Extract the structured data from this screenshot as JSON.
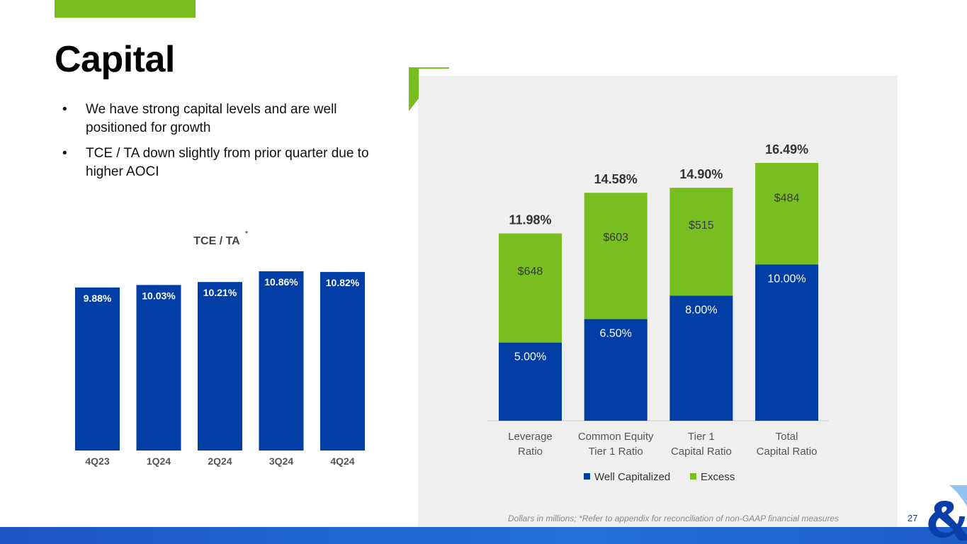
{
  "title": "Capital",
  "bullets": [
    "We have strong capital levels and are well positioned for growth",
    "TCE / TA down slightly from prior quarter due to higher AOCI"
  ],
  "footnote": "Dollars in millions; *Refer to appendix for reconciliation of non-GAAP financial measures",
  "page_number": "27",
  "colors": {
    "blue": "#003da5",
    "green": "#78be20",
    "panel": "#efefef"
  },
  "chart_data": [
    {
      "type": "bar",
      "title": "TCE / TA",
      "title_marker": "*",
      "categories": [
        "4Q23",
        "1Q24",
        "2Q24",
        "3Q24",
        "4Q24"
      ],
      "values": [
        9.88,
        10.03,
        10.21,
        10.86,
        10.82
      ],
      "value_labels": [
        "9.88%",
        "10.03%",
        "10.21%",
        "10.86%",
        "10.82%"
      ],
      "ylim": [
        0,
        11
      ],
      "color": "#003da5"
    },
    {
      "type": "bar",
      "stacked": true,
      "categories": [
        "Leverage Ratio",
        "Common Equity Tier 1 Ratio",
        "Tier 1 Capital Ratio",
        "Total Capital Ratio"
      ],
      "category_lines": [
        [
          "Leverage",
          "Ratio"
        ],
        [
          "Common Equity",
          "Tier 1 Ratio"
        ],
        [
          "Tier 1",
          "Capital Ratio"
        ],
        [
          "Total",
          "Capital Ratio"
        ]
      ],
      "series": [
        {
          "name": "Well Capitalized",
          "values": [
            5.0,
            6.5,
            8.0,
            10.0
          ],
          "labels": [
            "5.00%",
            "6.50%",
            "8.00%",
            "10.00%"
          ],
          "color": "#003da5"
        },
        {
          "name": "Excess",
          "values": [
            6.98,
            8.08,
            6.9,
            6.49
          ],
          "labels": [
            "$648",
            "$603",
            "$515",
            "$484"
          ],
          "color": "#78be20"
        }
      ],
      "totals": [
        11.98,
        14.58,
        14.9,
        16.49
      ],
      "total_labels": [
        "11.98%",
        "14.58%",
        "14.90%",
        "16.49%"
      ],
      "legend_position": "bottom",
      "ylim": [
        0,
        16.49
      ]
    }
  ]
}
